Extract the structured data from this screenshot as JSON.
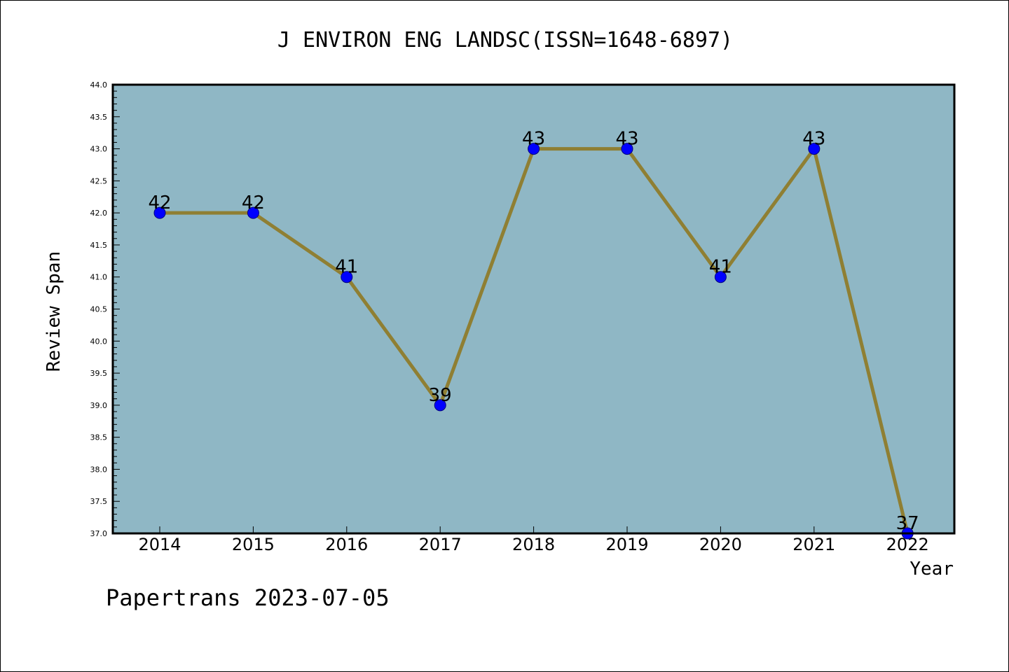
{
  "chart_data": {
    "type": "line",
    "title": "J ENVIRON ENG LANDSC(ISSN=1648-6897)",
    "xlabel": "Year",
    "ylabel": "Review Span",
    "categories": [
      "2014",
      "2015",
      "2016",
      "2017",
      "2018",
      "2019",
      "2020",
      "2021",
      "2022"
    ],
    "series": [
      {
        "values": [
          42,
          42,
          41,
          39,
          43,
          43,
          41,
          43,
          37
        ],
        "data_labels": [
          "42",
          "42",
          "41",
          "39",
          "43",
          "43",
          "41",
          "43",
          "37"
        ]
      }
    ],
    "ylim": [
      37.0,
      44.0
    ],
    "y_ticks": [
      "37.0",
      "37.5",
      "38.0",
      "38.5",
      "39.0",
      "39.5",
      "40.0",
      "40.5",
      "41.0",
      "41.5",
      "42.0",
      "42.5",
      "43.0",
      "43.5",
      "44.0"
    ],
    "grid": false,
    "legend": "none",
    "footer": "Papertrans 2023-07-05",
    "colors": {
      "plot_background": "#8fb7c5",
      "line": "#8f7f33",
      "marker": "#0000ff",
      "marker_edge": "#000080",
      "axes": "#000000"
    }
  }
}
